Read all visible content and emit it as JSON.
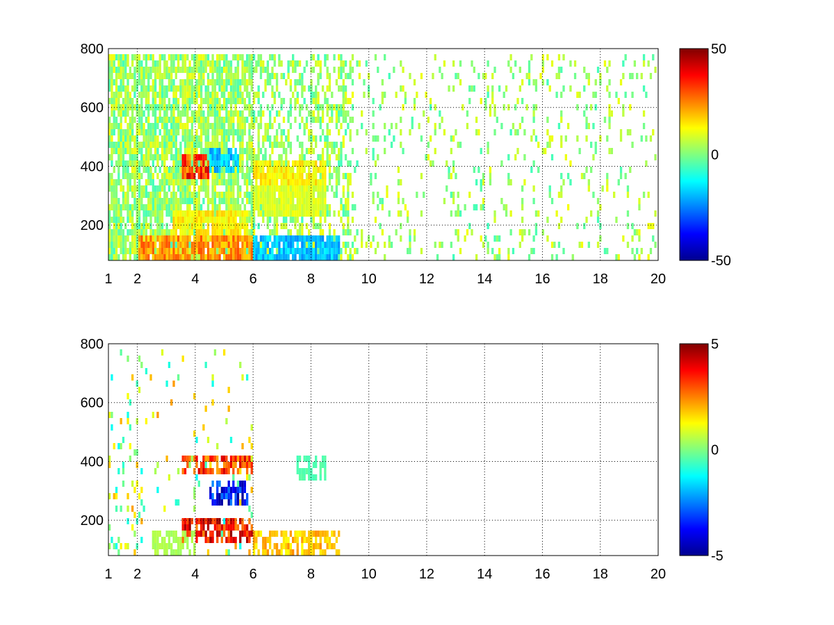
{
  "chart_data": [
    {
      "type": "heatmap",
      "title": "",
      "xlabel": "",
      "ylabel": "",
      "xlim": [
        1,
        20
      ],
      "ylim": [
        80,
        800
      ],
      "x_ticks": [
        1,
        2,
        4,
        6,
        8,
        10,
        12,
        14,
        16,
        18,
        20
      ],
      "y_ticks": [
        200,
        400,
        600,
        800
      ],
      "grid": true,
      "colormap": "jet",
      "colorbar": {
        "range": [
          -50,
          50
        ],
        "ticks": [
          -50,
          0,
          50
        ]
      },
      "features": [
        {
          "x_range": [
            2,
            6
          ],
          "y": 120,
          "value": 25
        },
        {
          "x_range": [
            3.2,
            5.8
          ],
          "y": 200,
          "value": 15
        },
        {
          "x_range": [
            3.5,
            4.5
          ],
          "y": 400,
          "value": 35
        },
        {
          "x_range": [
            4.5,
            5.5
          ],
          "y": 420,
          "value": -20
        },
        {
          "x_range": [
            6,
            8.5
          ],
          "y": 380,
          "value": 15
        },
        {
          "x_range": [
            6,
            9
          ],
          "y": 125,
          "value": -20
        },
        {
          "x_range": [
            6,
            8.5
          ],
          "y": 280,
          "value": 10
        }
      ]
    },
    {
      "type": "heatmap",
      "title": "",
      "xlabel": "",
      "ylabel": "",
      "xlim": [
        1,
        20
      ],
      "ylim": [
        80,
        800
      ],
      "x_ticks": [
        1,
        2,
        4,
        6,
        8,
        10,
        12,
        14,
        16,
        18,
        20
      ],
      "y_ticks": [
        200,
        400,
        600,
        800
      ],
      "grid": true,
      "colormap": "jet",
      "colorbar": {
        "range": [
          -5,
          5
        ],
        "ticks": [
          -5,
          0,
          5
        ]
      },
      "features": [
        {
          "x_range": [
            3.5,
            6
          ],
          "y": 390,
          "value": 3.5
        },
        {
          "x_range": [
            4.5,
            5.8
          ],
          "y": 290,
          "value": -4
        },
        {
          "x_range": [
            3.5,
            6
          ],
          "y": 170,
          "value": 4
        },
        {
          "x_range": [
            2.5,
            4
          ],
          "y": 120,
          "value": 0.5
        },
        {
          "x_range": [
            6,
            9
          ],
          "y": 125,
          "value": 2
        },
        {
          "x_range": [
            7.5,
            8.5
          ],
          "y": 380,
          "value": -0.5
        }
      ]
    }
  ]
}
